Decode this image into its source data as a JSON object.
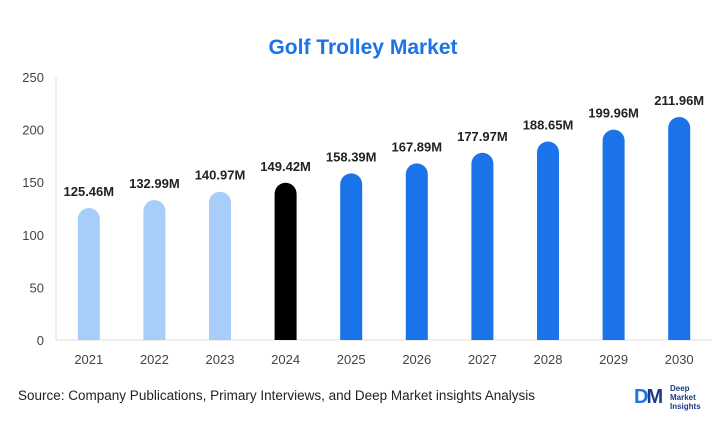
{
  "chart_data": {
    "type": "bar",
    "title": "Golf Trolley Market",
    "categories": [
      "2021",
      "2022",
      "2023",
      "2024",
      "2025",
      "2026",
      "2027",
      "2028",
      "2029",
      "2030"
    ],
    "values": [
      125.46,
      132.99,
      140.97,
      149.42,
      158.39,
      167.89,
      177.97,
      188.65,
      199.96,
      211.96
    ],
    "value_labels": [
      "125.46M",
      "132.99M",
      "140.97M",
      "149.42M",
      "158.39M",
      "167.89M",
      "177.97M",
      "188.65M",
      "199.96M",
      "211.96M"
    ],
    "bar_colors": [
      "#a7cdf9",
      "#a7cdf9",
      "#a7cdf9",
      "#000000",
      "#1a73e8",
      "#1a73e8",
      "#1a73e8",
      "#1a73e8",
      "#1a73e8",
      "#1a73e8"
    ],
    "yticks": [
      0,
      50,
      100,
      150,
      200,
      250
    ],
    "ylim": [
      0,
      250
    ],
    "xlabel": "",
    "ylabel": "",
    "grid": false
  },
  "footer": {
    "source_label": "Source",
    "source_text": ": Company Publications, Primary Interviews, and Deep Market insights Analysis"
  },
  "logo": {
    "mark_d": "D",
    "mark_m": "M",
    "line1": "Deep",
    "line2": "Market",
    "line3": "Insights"
  },
  "colors": {
    "title": "#1a73e8",
    "historical": "#a7cdf9",
    "base_year": "#000000",
    "forecast": "#1a73e8"
  }
}
